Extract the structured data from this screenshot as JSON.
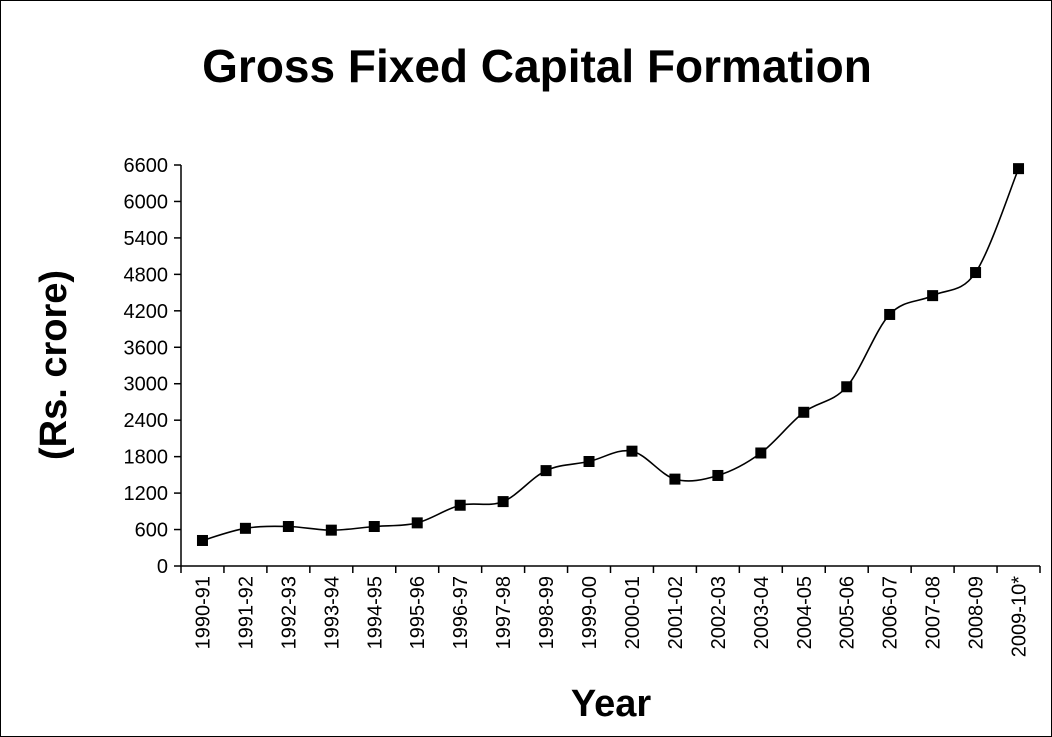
{
  "chart_data": {
    "type": "line",
    "title": "Gross Fixed Capital Formation",
    "xlabel": "Year",
    "ylabel": "(Rs. crore)",
    "ylim": [
      0,
      6600
    ],
    "yticks": [
      "0",
      "600",
      "1200",
      "1800",
      "2400",
      "3000",
      "3600",
      "4200",
      "4800",
      "5400",
      "6000",
      "6600"
    ],
    "categories": [
      "1990-91",
      "1991-92",
      "1992-93",
      "1993-94",
      "1994-95",
      "1995-96",
      "1996-97",
      "1997-98",
      "1998-99",
      "1999-00",
      "2000-01",
      "2001-02",
      "2002-03",
      "2003-04",
      "2004-05",
      "2005-06",
      "2006-07",
      "2007-08",
      "2008-09",
      "2009-10*"
    ],
    "series": [
      {
        "values": [
          420,
          620,
          650,
          590,
          650,
          710,
          1000,
          1060,
          1570,
          1720,
          1890,
          1430,
          1490,
          1860,
          2530,
          2950,
          4140,
          4450,
          4830,
          6540
        ]
      }
    ],
    "marker": "square",
    "line_color": "#000000",
    "grid": false,
    "legend": "none"
  }
}
